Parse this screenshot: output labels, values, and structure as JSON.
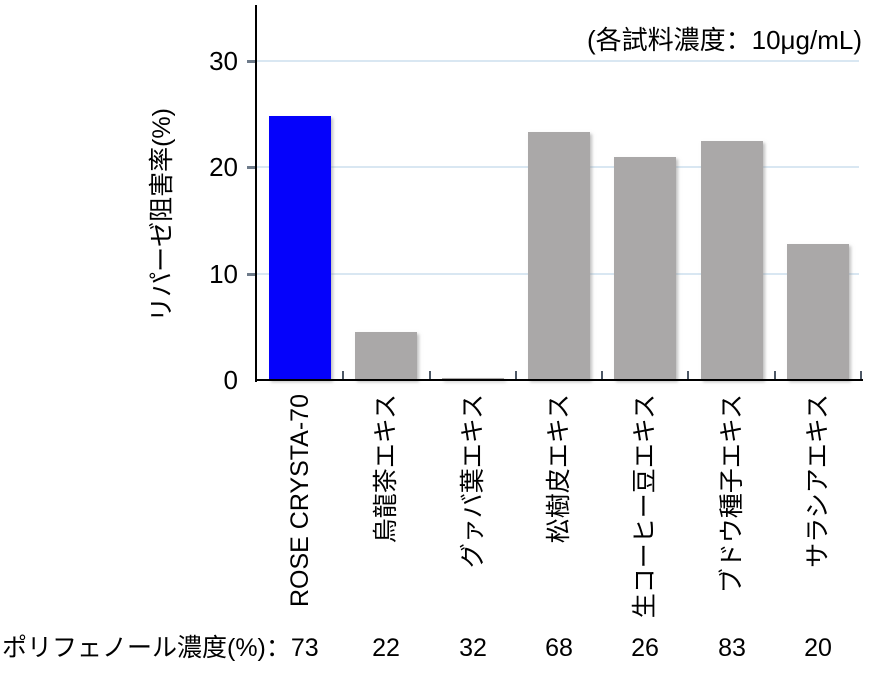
{
  "figure": {
    "annotation": "(各試料濃度：10μg/mL)"
  },
  "chart_data": {
    "type": "bar",
    "title": "",
    "annotation": "(各試料濃度：10μg/mL)",
    "xlabel": "",
    "ylabel": "リパーゼ阻害率(%)",
    "categories": [
      "ROSE CRYSTA-70",
      "烏龍茶エキス",
      "グァバ葉エキス",
      "松樹皮エキス",
      "生コーヒー豆エキス",
      "ブドウ種子エキス",
      "サラシアエキス"
    ],
    "values": [
      24.8,
      4.5,
      0.2,
      23.3,
      21.0,
      22.5,
      12.8
    ],
    "bar_colors": [
      "#0502fb",
      "#aaa8a8",
      "#aaa8a8",
      "#aaa8a8",
      "#aaa8a8",
      "#aaa8a8",
      "#aaa8a8"
    ],
    "ylim": [
      0,
      35
    ],
    "yticks": [
      0,
      10,
      20,
      30
    ],
    "grid": true,
    "legend_position": "none",
    "polyphenol_row": {
      "label": "ポリフェノール濃度(%)：",
      "values": [
        "73",
        "22",
        "32",
        "68",
        "26",
        "83",
        "20"
      ]
    }
  },
  "colors": {
    "highlight_bar": "#0502fb",
    "default_bar": "#aaa8a8",
    "gridline": "#d9e7f2",
    "axis": "#000000",
    "tick": "#6e7b8a",
    "text": "#000000",
    "background": "#ffffff"
  }
}
